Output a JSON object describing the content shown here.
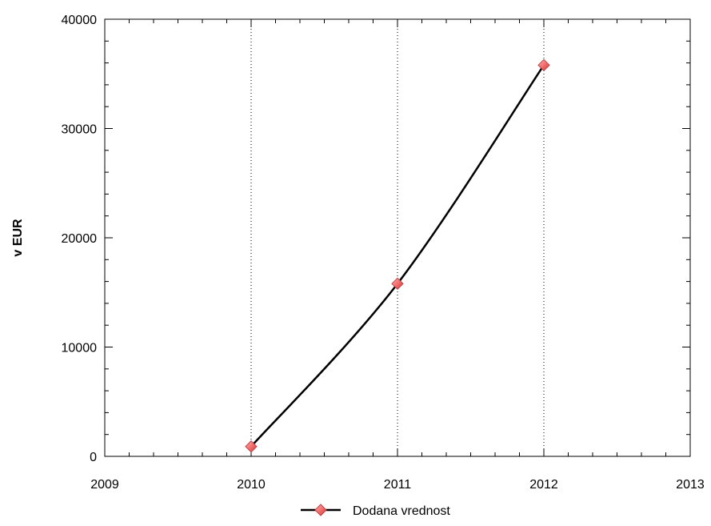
{
  "chart_data": {
    "type": "line",
    "title": "",
    "xlabel": "",
    "ylabel": "v EUR",
    "xlim": [
      2009,
      2013
    ],
    "ylim": [
      0,
      40000
    ],
    "x_ticks": [
      2009,
      2010,
      2011,
      2012,
      2013
    ],
    "x_tick_labels": [
      "2009",
      "2010",
      "2011",
      "2012",
      "2013"
    ],
    "y_ticks": [
      0,
      10000,
      20000,
      30000,
      40000
    ],
    "y_tick_labels": [
      "0",
      "10000",
      "20000",
      "30000",
      "40000"
    ],
    "x_minor_per_major": 6,
    "y_minor_per_major": 5,
    "grid": "vertical dotted",
    "legend_position": "bottom-center",
    "series": [
      {
        "name": "Dodana vrednost",
        "x": [
          2010,
          2011,
          2012
        ],
        "values": [
          900,
          15800,
          35800
        ],
        "line_color": "#000000",
        "marker": "diamond",
        "marker_color": "#f06a6a"
      }
    ]
  }
}
